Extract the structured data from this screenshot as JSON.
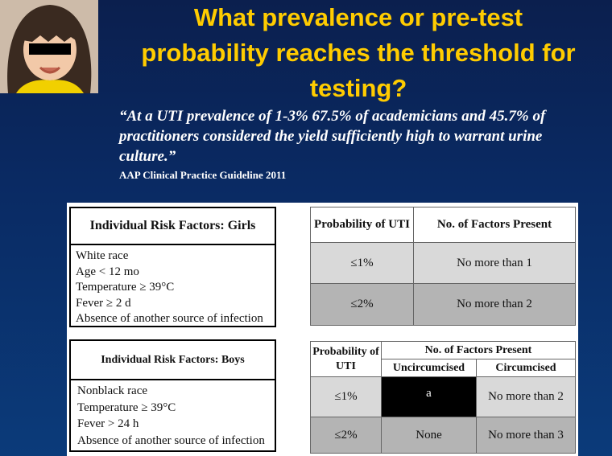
{
  "header": {
    "title_lines": [
      "What prevalence or pre-test",
      "probability reaches the threshold for",
      "testing?"
    ]
  },
  "quote": {
    "text": "“At a UTI prevalence of 1-3%  67.5% of academicians and 45.7% of practitioners considered the yield sufficiently high to warrant urine culture.”",
    "citation": "AAP Clinical Practice Guideline 2011"
  },
  "girls": {
    "risk_header": "Individual Risk Factors: Girls",
    "risk_items": [
      "White race",
      "Age < 12 mo",
      "Temperature ≥ 39°C",
      "Fever ≥ 2 d",
      "Absence of another source of infection"
    ],
    "table": {
      "col_prob": "Probability of UTI",
      "col_factors": "No. of Factors Present",
      "rows": [
        {
          "prob": "≤1%",
          "factors": "No more than 1"
        },
        {
          "prob": "≤2%",
          "factors": "No more than 2"
        }
      ]
    }
  },
  "boys": {
    "risk_header": "Individual Risk Factors: Boys",
    "risk_items": [
      "Nonblack race",
      "Temperature ≥ 39°C",
      "Fever > 24 h",
      "Absence of another source of infection"
    ],
    "table": {
      "col_prob": "Probability of UTI",
      "col_factors": "No. of Factors Present",
      "col_uncirc": "Uncircumcised",
      "col_circ": "Circumcised",
      "rows": [
        {
          "prob": "≤1%",
          "uncirc": "a",
          "circ": "No more than 2"
        },
        {
          "prob": "≤2%",
          "uncirc": "None",
          "circ": "No more than 3"
        }
      ]
    }
  },
  "colors": {
    "background": "#0b2a66",
    "title": "#ffcc00",
    "text": "#ffffff"
  }
}
